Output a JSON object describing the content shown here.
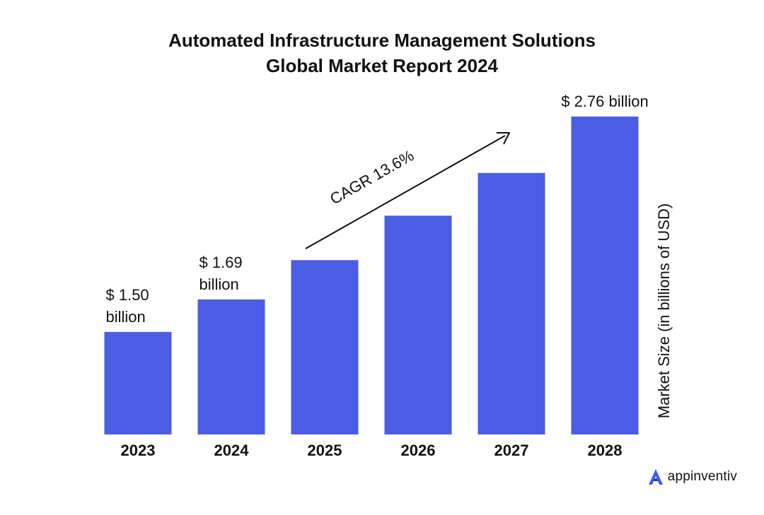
{
  "chart_data": {
    "type": "bar",
    "title_lines": [
      "Automated Infrastructure Management Solutions",
      "Global Market Report 2024"
    ],
    "categories": [
      "2023",
      "2024",
      "2025",
      "2026",
      "2027",
      "2028"
    ],
    "values": [
      1.5,
      1.69,
      1.92,
      2.18,
      2.43,
      2.76
    ],
    "value_labels": [
      [
        "$ 1.50",
        "billion"
      ],
      [
        "$ 1.69",
        "billion"
      ],
      null,
      null,
      null,
      [
        "$ 2.76 billion"
      ]
    ],
    "xlabel": "",
    "ylabel": "Market Size (in billions of USD)",
    "ylim": [
      0.9,
      2.76
    ],
    "grid": false,
    "annotation": "CAGR 13.6%",
    "bar_color": "#4B5DE4"
  },
  "brand": {
    "name": "appinventiv",
    "color": "#3D5AFE"
  }
}
